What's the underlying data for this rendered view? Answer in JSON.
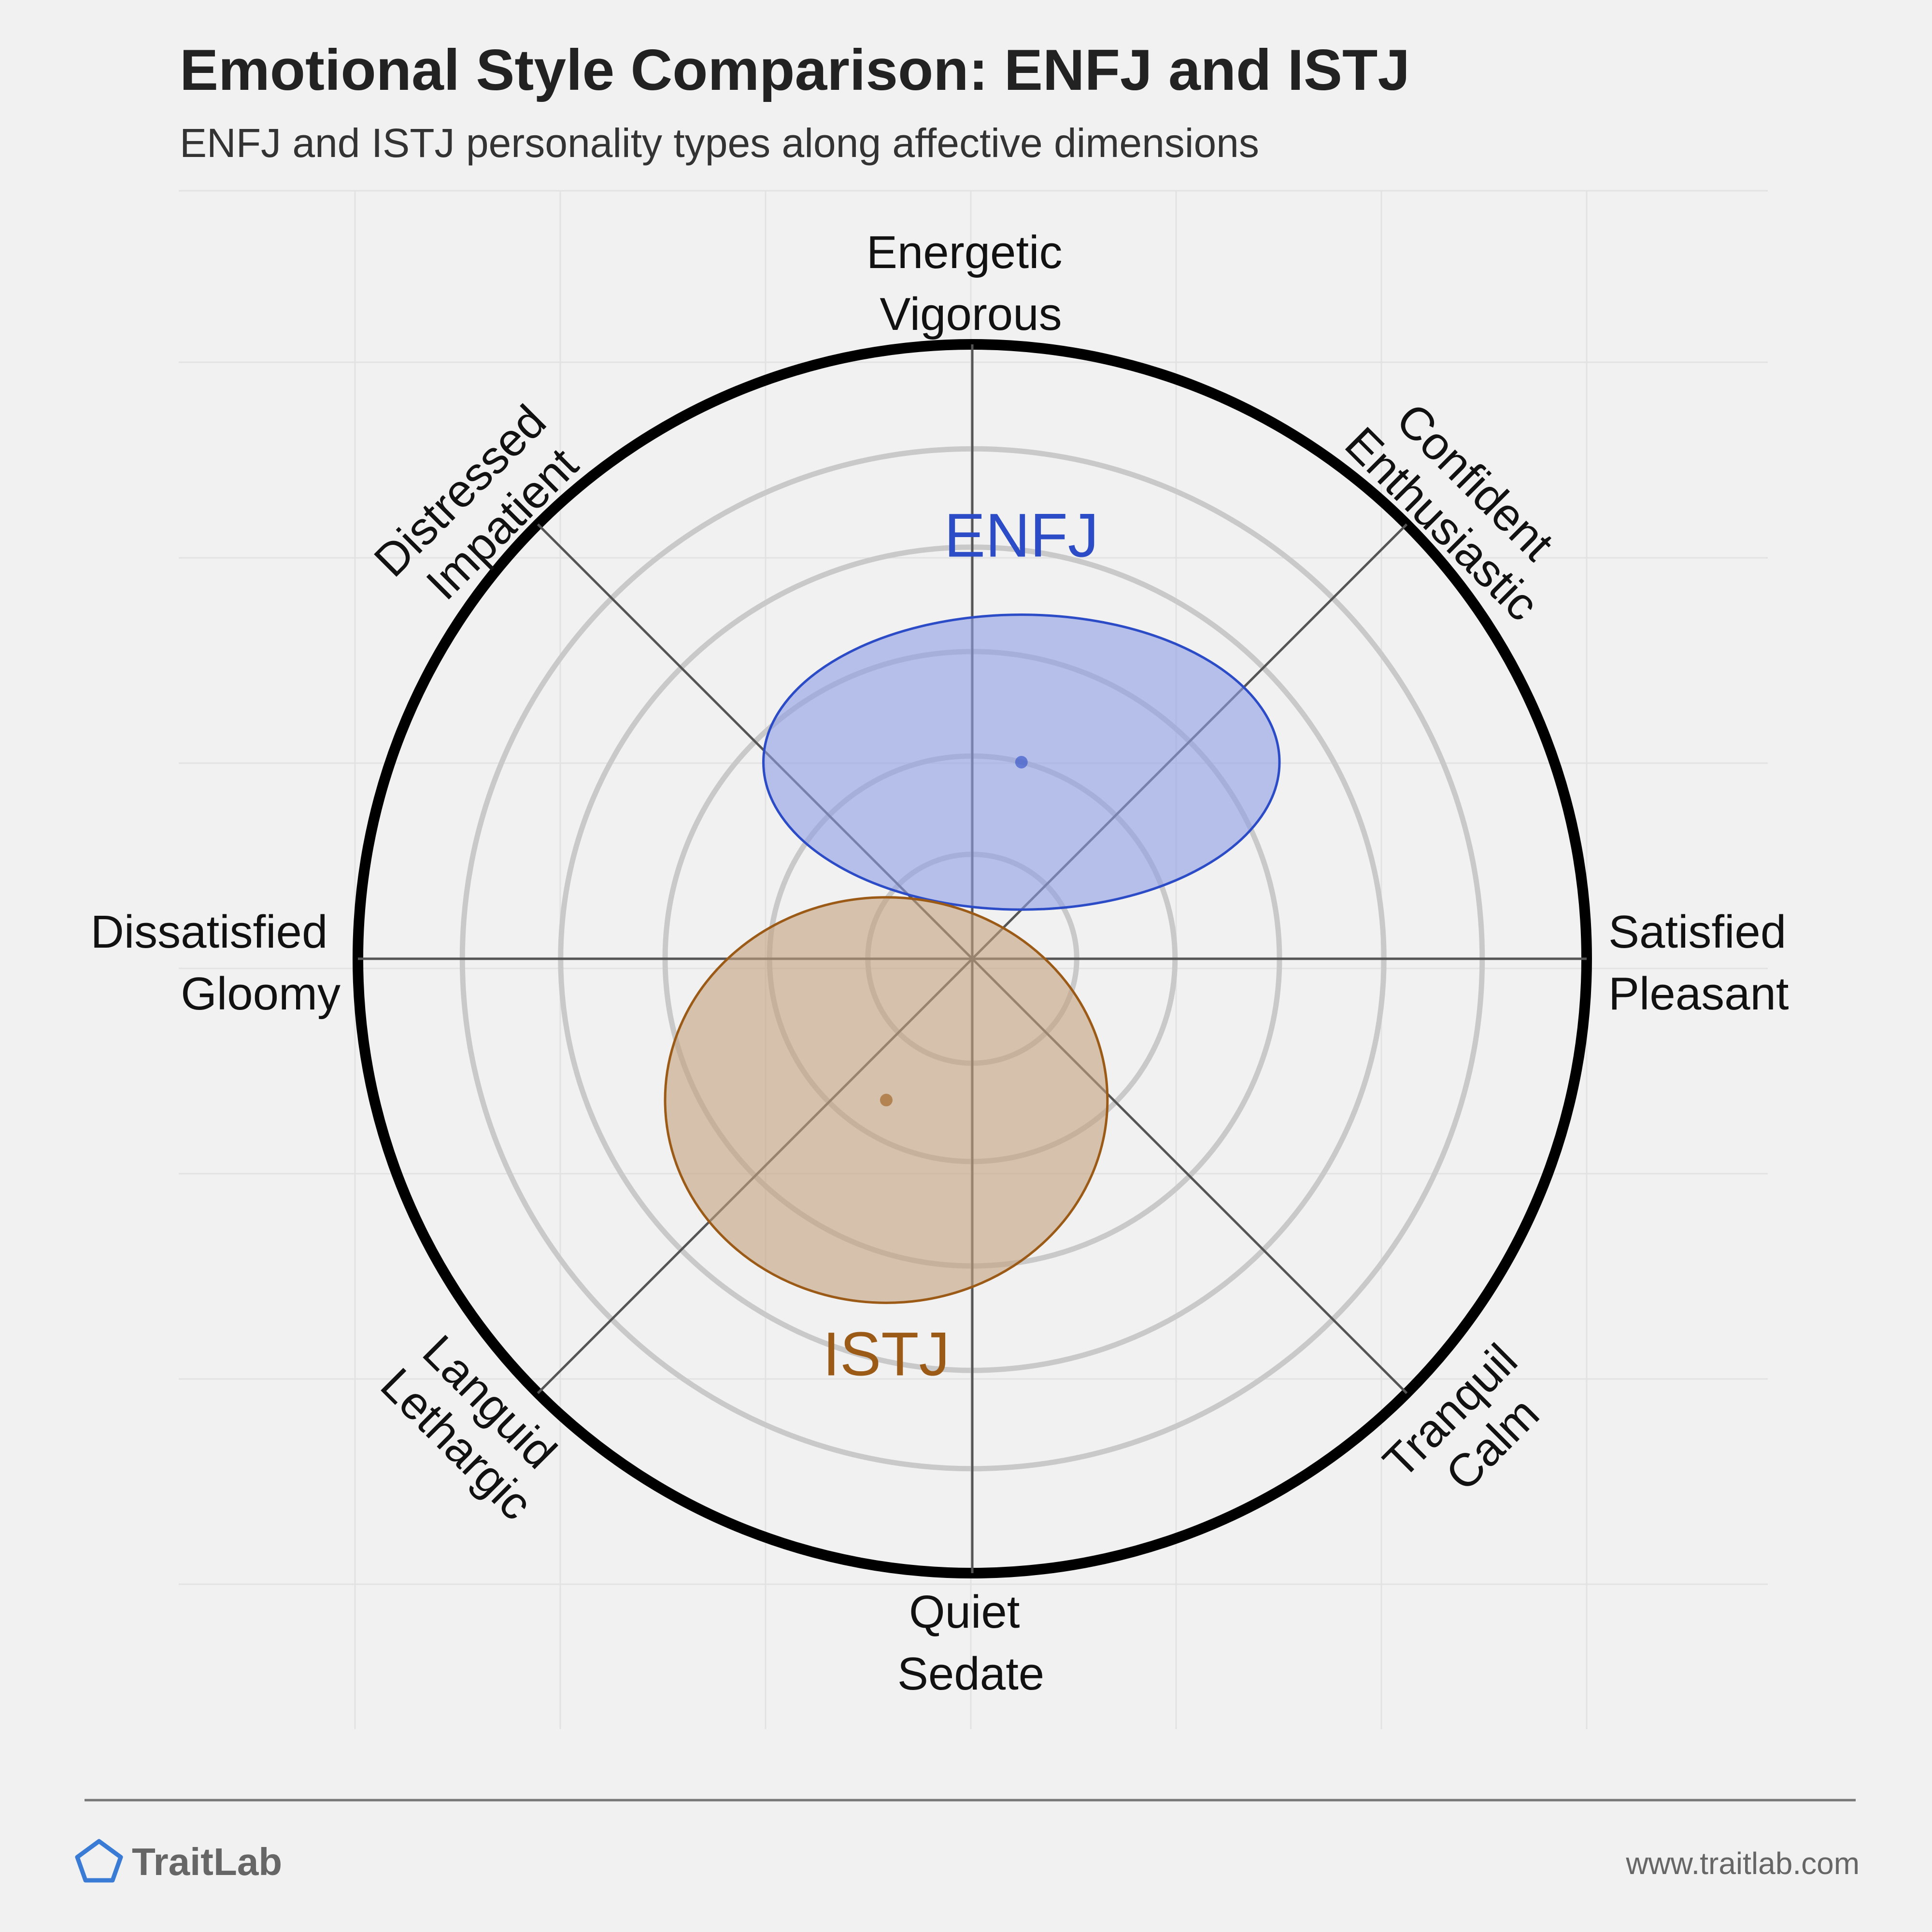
{
  "chart_data": {
    "type": "scatter",
    "title": "Emotional Style Comparison: ENFJ and ISTJ",
    "subtitle": "ENFJ and ISTJ personality types along affective dimensions",
    "axes": {
      "top": [
        "Energetic",
        "Vigorous"
      ],
      "top_right": [
        "Confident",
        "Enthusiastic"
      ],
      "right": [
        "Satisfied",
        "Pleasant"
      ],
      "bottom_right": [
        "Tranquil",
        "Calm"
      ],
      "bottom": [
        "Quiet",
        "Sedate"
      ],
      "bottom_left": [
        "Languid",
        "Lethargic"
      ],
      "left": [
        "Dissatisfied",
        "Gloomy"
      ],
      "top_left": [
        "Distressed",
        "Impatient"
      ]
    },
    "xlim": [
      -1,
      1
    ],
    "ylim": [
      -1,
      1
    ],
    "rings": [
      0.17,
      0.33,
      0.5,
      0.67,
      0.83
    ],
    "grid": true,
    "series": [
      {
        "name": "ENFJ",
        "x": 0.08,
        "y": 0.32,
        "spread_x": 0.42,
        "spread_y": 0.24,
        "color": "#2b4cc6",
        "fill": "#8f9ee6"
      },
      {
        "name": "ISTJ",
        "x": -0.14,
        "y": -0.23,
        "spread_x": 0.36,
        "spread_y": 0.33,
        "color": "#9b5a16",
        "fill": "#c4a27f"
      }
    ]
  },
  "footer": {
    "brand": "TraitLab",
    "url": "www.traitlab.com",
    "brand_icon": "pentagon-logo-icon",
    "brand_color": "#3a7bd5"
  },
  "colors": {
    "background": "#f1f1f1",
    "outer_circle": "#000000",
    "rings": "#c9c9c9",
    "axis_lines": "#555555"
  }
}
